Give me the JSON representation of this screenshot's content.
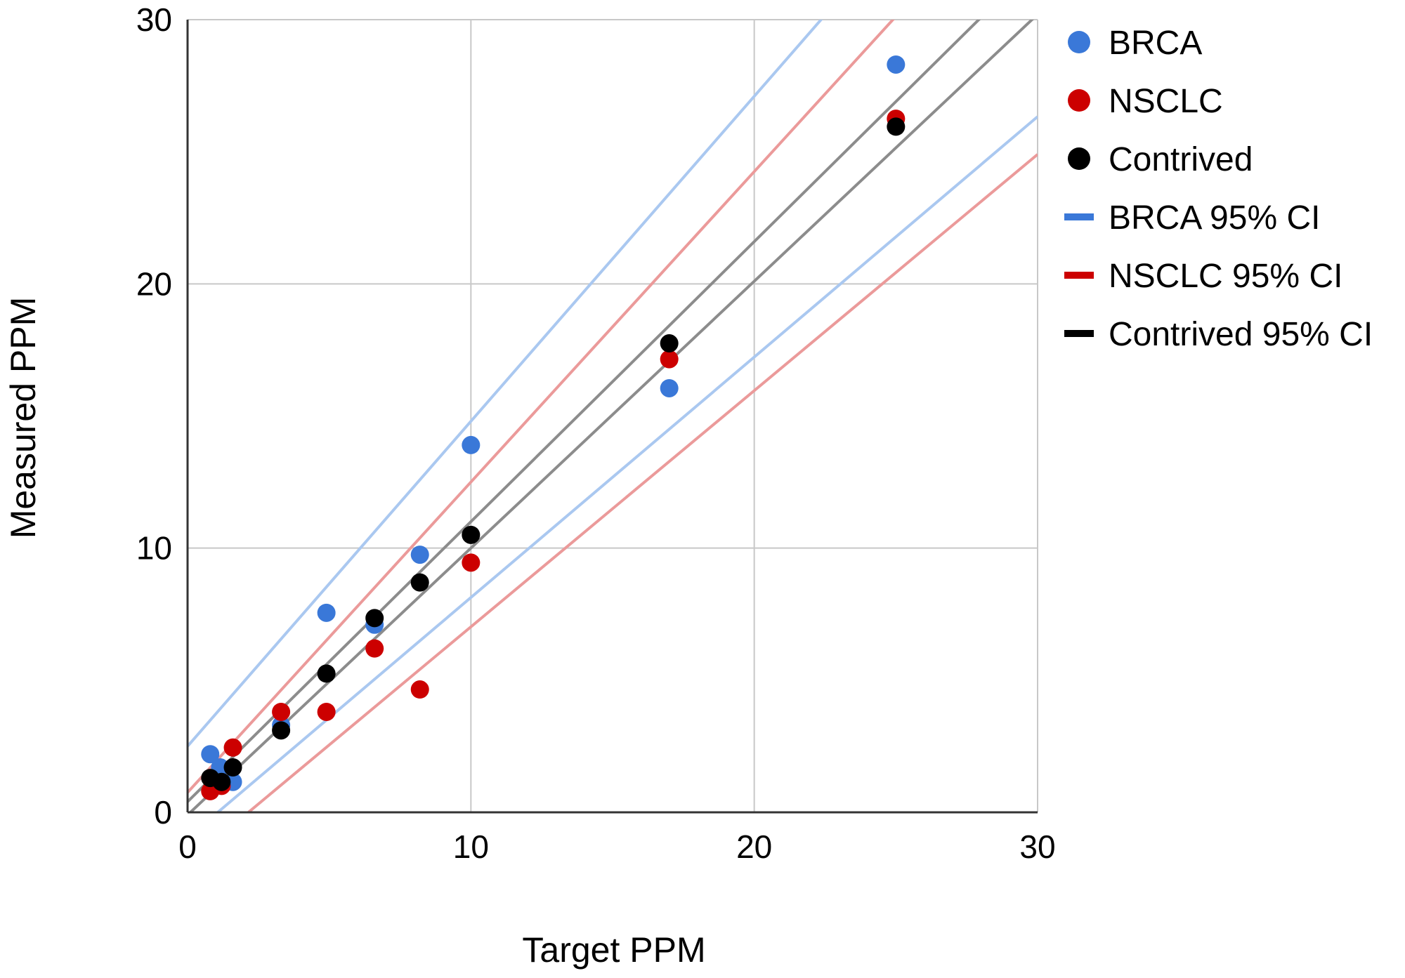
{
  "chart_data": {
    "type": "scatter",
    "xlabel": "Target PPM",
    "ylabel": "Measured PPM",
    "xlim": [
      0,
      30
    ],
    "ylim": [
      0,
      30
    ],
    "xticks": [
      "0",
      "10",
      "20",
      "30"
    ],
    "yticks": [
      "0",
      "10",
      "20",
      "30"
    ],
    "grid": true,
    "legend_position": "right",
    "series": [
      {
        "name": "BRCA",
        "kind": "points",
        "color": "#3a78d8",
        "x": [
          0.8,
          1.15,
          1.6,
          3.3,
          4.9,
          6.6,
          8.2,
          10,
          17,
          25
        ],
        "y": [
          2.2,
          1.7,
          1.15,
          3.3,
          7.55,
          7.1,
          9.75,
          13.9,
          16.05,
          28.3
        ]
      },
      {
        "name": "NSCLC",
        "kind": "points",
        "color": "#cc0000",
        "x": [
          0.8,
          1.2,
          1.6,
          3.3,
          4.9,
          6.6,
          8.2,
          10,
          17,
          25
        ],
        "y": [
          0.8,
          1.0,
          2.45,
          3.8,
          3.8,
          6.2,
          4.65,
          9.45,
          17.15,
          26.25
        ]
      },
      {
        "name": "Contrived",
        "kind": "points",
        "color": "#000000",
        "x": [
          0.8,
          1.2,
          1.6,
          3.3,
          4.9,
          6.6,
          8.2,
          10,
          17,
          25
        ],
        "y": [
          1.3,
          1.15,
          1.7,
          3.1,
          5.25,
          7.35,
          8.7,
          10.5,
          17.75,
          25.95
        ]
      },
      {
        "name": "BRCA 95% CI",
        "kind": "lines",
        "color": "#3a78d8",
        "line_color": "#aac8f0",
        "lines": [
          {
            "slope": 1.23,
            "intercept": 2.5
          },
          {
            "slope": 0.91,
            "intercept": -0.97
          }
        ]
      },
      {
        "name": "NSCLC 95% CI",
        "kind": "lines",
        "color": "#cc0000",
        "line_color": "#eb9a9a",
        "lines": [
          {
            "slope": 1.175,
            "intercept": 0.75
          },
          {
            "slope": 0.894,
            "intercept": -1.92
          }
        ]
      },
      {
        "name": "Contrived 95% CI",
        "kind": "lines",
        "color": "#000000",
        "line_color": "#8c8c8c",
        "lines": [
          {
            "slope": 1.06,
            "intercept": 0.4
          },
          {
            "slope": 1.01,
            "intercept": -0.1
          }
        ]
      }
    ]
  }
}
